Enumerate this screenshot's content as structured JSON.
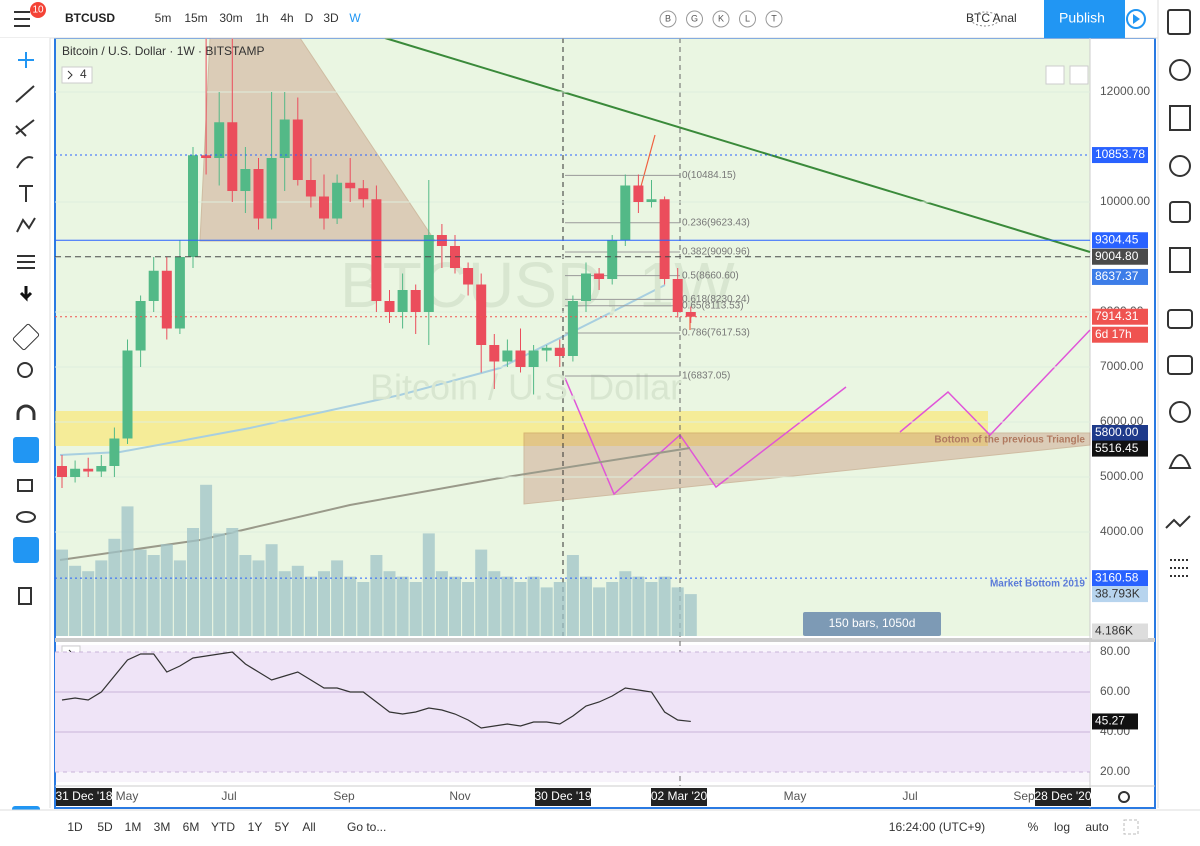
{
  "toolbar": {
    "symbol": "BTCUSD",
    "badge": "10",
    "intervals": [
      "5m",
      "15m",
      "30m",
      "1h",
      "4h",
      "D",
      "3D",
      "W"
    ],
    "active_interval": 7,
    "study_letters": [
      "B",
      "G",
      "K",
      "L",
      "T"
    ],
    "layout_name": "BTC Anal",
    "publish": "Publish"
  },
  "chart_data": {
    "type": "candlestick",
    "legend": "Bitcoin / U.S. Dollar · 1W · BITSTAMP",
    "indicators_count": "4",
    "watermark": [
      "BTCUSD, 1W",
      "Bitcoin / U.S. Dollar"
    ],
    "up_color": "#53b987",
    "down_color": "#eb4d5c",
    "candles": {
      "open": [
        5200,
        5000,
        5150,
        5100,
        5200,
        5700,
        7300,
        8200,
        8750,
        7700,
        9000,
        10850,
        10800,
        11450,
        10200,
        10600,
        9700,
        10800,
        11500,
        10400,
        10100,
        9700,
        10350,
        10250,
        10050,
        8200,
        8000,
        8400,
        8000,
        9400,
        9200,
        8800,
        8500,
        7400,
        7100,
        7300,
        7000,
        7300,
        7350,
        7200,
        8200,
        8700,
        8600,
        9300,
        10300,
        10000,
        10050,
        8600,
        8000
      ],
      "high": [
        5400,
        5300,
        5350,
        5400,
        5900,
        7500,
        8300,
        9000,
        9000,
        9300,
        11000,
        13800,
        12000,
        13200,
        11000,
        10800,
        12000,
        12000,
        11900,
        10800,
        10500,
        10500,
        10800,
        10400,
        10300,
        8400,
        8700,
        8500,
        10400,
        9600,
        9400,
        8900,
        8700,
        7600,
        7500,
        7700,
        7400,
        7400,
        7500,
        8300,
        8900,
        8800,
        9400,
        10500,
        10500,
        10400,
        10100,
        8800,
        8100
      ],
      "low": [
        4800,
        4900,
        5000,
        5000,
        5000,
        5600,
        7000,
        8000,
        7500,
        7600,
        8800,
        10500,
        10300,
        10000,
        9800,
        9500,
        9500,
        10200,
        10300,
        9900,
        9500,
        9600,
        10000,
        9900,
        8000,
        7800,
        7700,
        7600,
        7400,
        8800,
        8700,
        8300,
        6900,
        6600,
        7000,
        6900,
        6500,
        7100,
        7000,
        7100,
        8000,
        8400,
        8500,
        9200,
        9800,
        9900,
        8500,
        7900,
        7800
      ],
      "close": [
        5000,
        5150,
        5100,
        5200,
        5700,
        7300,
        8200,
        8750,
        7700,
        9000,
        10850,
        10800,
        11450,
        10200,
        10600,
        9700,
        10800,
        11500,
        10400,
        10100,
        9700,
        10350,
        10250,
        10050,
        8200,
        8000,
        8400,
        8000,
        9400,
        9200,
        8800,
        8500,
        7400,
        7100,
        7300,
        7000,
        7300,
        7350,
        7200,
        8200,
        8700,
        8600,
        9300,
        10300,
        10000,
        10050,
        8600,
        8000,
        7914.31
      ]
    },
    "ylim": [
      2109,
      12982
    ],
    "yticks": [
      {
        "value": 4000,
        "label": "4000.00"
      },
      {
        "value": 5000,
        "label": "5000.00"
      },
      {
        "value": 6000,
        "label": "6000.00"
      },
      {
        "value": 7000,
        "label": "7000.00"
      },
      {
        "value": 8000,
        "label": "8000.00"
      },
      {
        "value": 9000,
        "label": "9000.00"
      },
      {
        "value": 10000,
        "label": "10000.00"
      },
      {
        "value": 12000,
        "label": "12000.00"
      }
    ],
    "price_lines": [
      {
        "value": 10853.78,
        "label": "10853.78",
        "color": "#2962ff",
        "style": "dotted"
      },
      {
        "value": 9304.45,
        "label": "9304.45",
        "color": "#2962ff",
        "style": "solid"
      },
      {
        "value": 9004.8,
        "label": "9004.80",
        "color": "#4a4a4a",
        "style": "dashed"
      },
      {
        "value": 8637.37,
        "label": "8637.37",
        "color": "#3d7de8",
        "style": "none"
      },
      {
        "value": 5800,
        "label": "5800.00",
        "color": "#1e3a8a",
        "style": "none"
      },
      {
        "value": 5516.45,
        "label": "5516.45",
        "color": "#111111",
        "style": "none"
      },
      {
        "value": 3160.58,
        "label": "3160.58",
        "color": "#2962ff",
        "style": "dotted"
      }
    ],
    "last_price_color": "#ef5350",
    "countdown": "6d 17h",
    "fib": [
      {
        "price": 10484.15,
        "label": "0(10484.15)"
      },
      {
        "price": 9623.43,
        "label": "0.236(9623.43)"
      },
      {
        "price": 9090.96,
        "label": "0.382(9090.96)"
      },
      {
        "price": 8660.6,
        "label": "0.5(8660.60)"
      },
      {
        "price": 8230.24,
        "label": "0.618(8230.24)"
      },
      {
        "price": 8113.53,
        "label": "0.65(8113.53)"
      },
      {
        "price": 7617.53,
        "label": "0.786(7617.53)"
      },
      {
        "price": 6837.05,
        "label": "1(6837.05)"
      }
    ],
    "annotations": {
      "triangle": "Bottom of the previous Triangle",
      "market_bottom": "Market Bottom 2019",
      "bars_info": "150 bars, 1050d"
    },
    "volume": {
      "values": [
        80,
        65,
        60,
        70,
        90,
        120,
        80,
        75,
        85,
        70,
        100,
        140,
        95,
        100,
        75,
        70,
        85,
        60,
        65,
        55,
        60,
        70,
        55,
        50,
        75,
        60,
        55,
        50,
        95,
        60,
        55,
        50,
        80,
        60,
        55,
        50,
        55,
        45,
        50,
        75,
        55,
        45,
        50,
        60,
        55,
        50,
        55,
        45,
        38.793
      ],
      "last_value_label": "38.793K",
      "ylim": [
        0,
        150
      ],
      "yticks": [
        {
          "value": 4.186,
          "label": "4.186K"
        }
      ],
      "color": "#9fc3c7"
    },
    "rsi": {
      "values": [
        56,
        57,
        56,
        60,
        68,
        76,
        79,
        79,
        70,
        73,
        77,
        78,
        79,
        80,
        74,
        70,
        66,
        68,
        70,
        66,
        62,
        62,
        60,
        60,
        55,
        50,
        49,
        50,
        52,
        51,
        49,
        46,
        42,
        43,
        44,
        43,
        45,
        45,
        44,
        48,
        53,
        55,
        58,
        62,
        61,
        60,
        50,
        46,
        45.27
      ],
      "ylim": [
        15,
        83.5
      ],
      "yticks": [
        {
          "value": 20,
          "label": "20.00"
        },
        {
          "value": 40,
          "label": "40.00"
        },
        {
          "value": 60,
          "label": "60.00"
        },
        {
          "value": 80,
          "label": "80.00"
        }
      ]
    },
    "time_labels": [
      "31 Dec '18",
      "May",
      "Jul",
      "Sep",
      "Nov",
      "30 Dec '19",
      "02 Mar '20",
      "May",
      "Jul",
      "Sep",
      "28 Dec '20"
    ]
  },
  "bottom_bar": {
    "ranges": [
      "1D",
      "5D",
      "1M",
      "3M",
      "6M",
      "YTD",
      "1Y",
      "5Y",
      "All"
    ],
    "goto": "Go to...",
    "clock": "16:24:00 (UTC+9)",
    "percent": "%",
    "log": "log",
    "auto": "auto"
  }
}
